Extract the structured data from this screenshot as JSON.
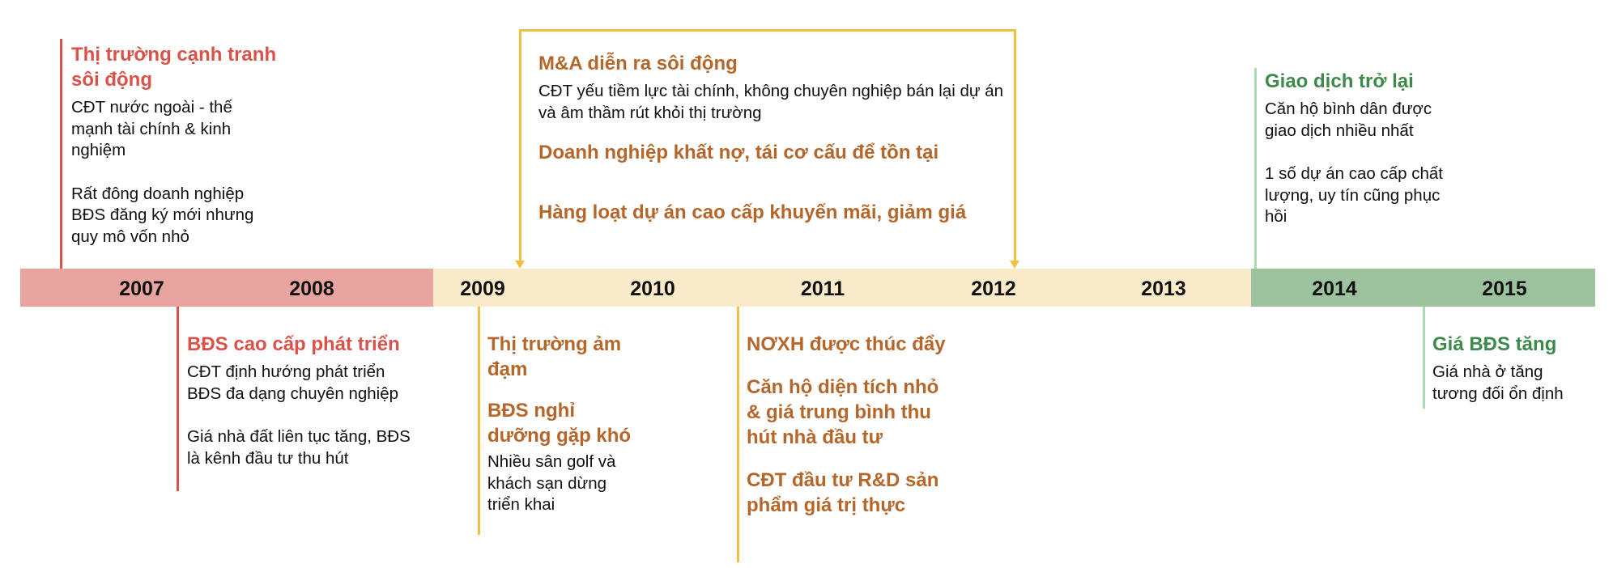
{
  "colors": {
    "red_band": "#e8a49f",
    "cream_band": "#f9ebc9",
    "green_band": "#9cc39e",
    "red_line": "#d9534a",
    "yellow_line": "#f0c040",
    "green_line": "#a9dcb2",
    "red_text": "#d9534a",
    "orange_text": "#b5662a",
    "green_text": "#3d8a4a"
  },
  "years": [
    "2007",
    "2008",
    "2009",
    "2010",
    "2011",
    "2012",
    "2013",
    "2014",
    "2015"
  ],
  "events": {
    "comp_2007": {
      "title": "Thị trường cạnh tranh sôi động",
      "items": [
        "CĐT nước ngoài - thế mạnh tài chính & kinh nghiệm",
        "Rất đông doanh nghiệp BĐS đăng ký mới nhưng quy mô vốn nhỏ"
      ]
    },
    "luxury_2008": {
      "title": "BĐS cao cấp phát triển",
      "items": [
        "CĐT định hướng phát triển BĐS đa dạng chuyên nghiệp",
        "Giá nhà đất liên tục tăng, BĐS là kênh đầu tư thu hút"
      ]
    },
    "ma_2009_2012": {
      "title": "M&A diễn ra sôi động",
      "text": "CĐT yếu tiềm lực tài chính, không chuyên nghiệp bán lại dự án và âm thầm rút khỏi thị trường",
      "title2": "Doanh nghiệp khất nợ, tái cơ cấu để tồn tại",
      "title3": "Hàng loạt dự án cao cấp khuyến mãi, giảm giá"
    },
    "gloom_2009": {
      "title": "Thị trường ảm đạm",
      "title2": "BĐS nghỉ dưỡng gặp khó",
      "text": "Nhiều sân golf và khách sạn dừng triển khai"
    },
    "social_2011": {
      "title": "NƠXH được thúc đẩy",
      "title2": "Căn hộ diện tích nhỏ & giá trung bình thu hút nhà đầu tư",
      "title3": "CĐT đầu tư R&D sản phẩm giá trị thực"
    },
    "recover_2014": {
      "title": "Giao dịch trở lại",
      "items": [
        "Căn hộ bình dân được giao dịch nhiều nhất",
        "1 số dự án cao cấp chất lượng, uy tín cũng phục hồi"
      ]
    },
    "price_2015": {
      "title": "Giá BĐS tăng",
      "text": "Giá nhà ở tăng tương đối ổn định"
    }
  }
}
